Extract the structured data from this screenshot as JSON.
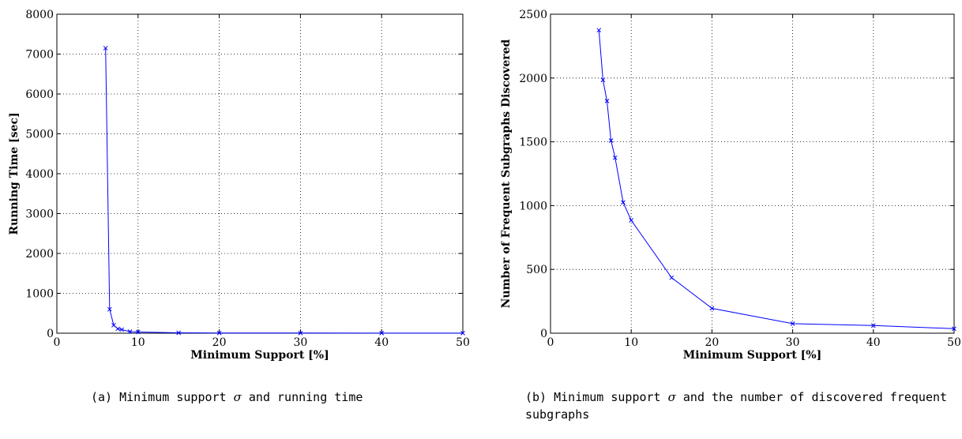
{
  "chart_data": [
    {
      "type": "line",
      "xlabel": "Minimum Support [%]",
      "ylabel": "Running Time [sec]",
      "xlim": [
        0,
        50
      ],
      "ylim": [
        0,
        8000
      ],
      "xticks": [
        0,
        10,
        20,
        30,
        40,
        50
      ],
      "yticks": [
        0,
        1000,
        2000,
        3000,
        4000,
        5000,
        6000,
        7000,
        8000
      ],
      "grid": true,
      "color": "#0000ff",
      "marker": "x",
      "x": [
        6,
        6.5,
        7,
        7.5,
        8,
        9,
        10,
        15,
        20,
        30,
        40,
        50
      ],
      "y": [
        7150,
        600,
        200,
        110,
        90,
        40,
        30,
        10,
        5,
        3,
        2,
        2
      ],
      "caption": {
        "prefix": "(a) Minimum support ",
        "symbol": "σ",
        "suffix": " and running time"
      }
    },
    {
      "type": "line",
      "xlabel": "Minimum Support [%]",
      "ylabel": "Number of Frequent Subgraphs Discovered",
      "xlim": [
        0,
        50
      ],
      "ylim": [
        0,
        2500
      ],
      "xticks": [
        0,
        10,
        20,
        30,
        40,
        50
      ],
      "yticks": [
        0,
        500,
        1000,
        1500,
        2000,
        2500
      ],
      "grid": true,
      "color": "#0000ff",
      "marker": "x",
      "x": [
        6,
        6.5,
        7,
        7.5,
        8,
        9,
        10,
        15,
        20,
        30,
        40,
        50
      ],
      "y": [
        2375,
        1985,
        1820,
        1510,
        1375,
        1025,
        885,
        435,
        195,
        75,
        60,
        35
      ],
      "caption": {
        "prefix": "(b) Minimum support ",
        "symbol": "σ",
        "suffix": " and the number of discovered frequent subgraphs"
      }
    }
  ]
}
